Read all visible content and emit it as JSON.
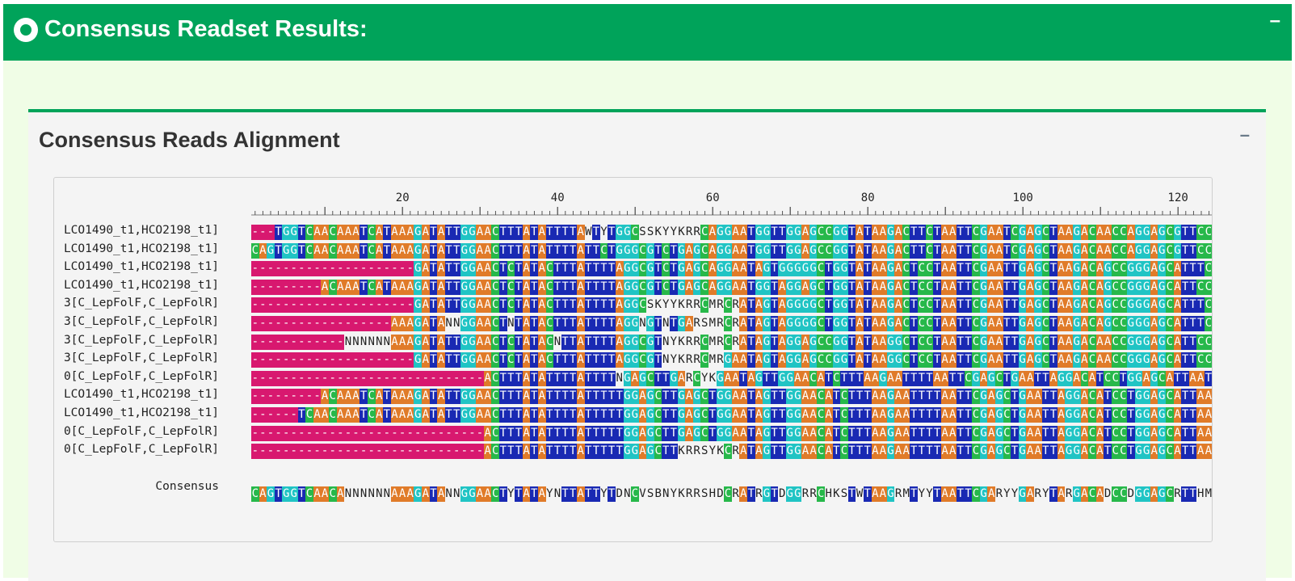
{
  "outer_panel": {
    "title": "Consensus Readset Results:",
    "collapse_label": "–"
  },
  "inner_panel": {
    "title": "Consensus Reads Alignment",
    "collapse_label": "–"
  },
  "ruler": {
    "ticks": [
      20,
      40,
      60,
      80,
      100,
      120
    ]
  },
  "colors": {
    "A": "#e07b29",
    "C": "#27b84a",
    "G": "#20c4c4",
    "T": "#1929b3",
    "gap": "#d8186f",
    "header": "#00a35a"
  },
  "alignment": {
    "rows": [
      {
        "label": "LCO1490_t1,HCO2198_t1]",
        "seq": "---TGGTCAACAAATCATAAAGATATTGGAACTTTATATTTTAWTYTGGCSSKYYKRRCAGGAATGGTTGGAGCCGGTATAAGACTTCTAATTCGAATCGAGCTAAGACAACCAGGAGCGTTCC"
      },
      {
        "label": "LCO1490_t1,HCO2198_t1]",
        "seq": "CAGTGGTCAACAAATCATAAAGATATTGGAACTTTATATTTTATTCTGGGCGTCTGAGCAGGAATGGTTGGAGCCGGTATAAGACTTCTAATTCGAATCGAGCTAAGACAACCAGGAGCGTTCC"
      },
      {
        "label": "LCO1490_t1,HCO2198_t1]",
        "seq": "---------------------GATATTGGAACTCTATACTTTATTTTAGGCGTCTGAGCAGGAATAGTGGGGGCTGGTATAAGACTCCTAATTCGAATTGAGCTAAGACAGCCGGGAGCATTTC"
      },
      {
        "label": "LCO1490_t1,HCO2198_t1]",
        "seq": "---------ACAAATCATAAAGATATTGGAACTCTATACTTTATTTTAGGCGTCTGAGCAGGAATGGTAGGAGCTGGTATAAGACTCCTAATTCGAATTGAGCTAAGACAGCCGGGAGCATTCC"
      },
      {
        "label": "3[C_LepFolF,C_LepFolR]",
        "seq": "---------------------GATATTGGAACTCTATACTTTATTTTAGGCSKYYKRRCMRCRATAGTAGGGGCTGGTATAAGACTCCTAATTCGAATTGAGCTAAGACAGCCGGGAGCATTTC"
      },
      {
        "label": "3[C_LepFolF,C_LepFolR]",
        "seq": "------------------AAAGATANNGGAACTNTATACTTTATTTTAGGNGTNTGARSMRCRATAGTAGGGGCTGGTATAAGACTCCTAATTCGAATTGAGCTAAGACAGCCGGGAGCATTTC"
      },
      {
        "label": "3[C_LepFolF,C_LepFolR]",
        "seq": "------------NNNNNNAAAGATATTGGAACTCTATACNTTATTTTAGGCGTNYKRRCMRCRATAGTAGGAGCCGGTATAAGGCTCCTAATTCGAATTGAGCTAAGACAACCGGGAGCATTCC"
      },
      {
        "label": "3[C_LepFolF,C_LepFolR]",
        "seq": "---------------------GATATTGGAACTCTATACTTTATTTTAGGCGTNYKRRCMRGAATAGTAGGAGCCGGTATAAGGCTCCTAATTCGAATTGAGCTAAGACAACCGGGAGCATTCC"
      },
      {
        "label": "0[C_LepFolF,C_LepFolR]",
        "seq": "------------------------------ACTTTATATTTTATTTTNGAGCTTGARCYKGAATAGTTGGAACATCTTTAAGAATTTTAATTCGAGCTGAATTAGGACATCCTGGAGCATTAAT"
      },
      {
        "label": "LCO1490_t1,HCO2198_t1]",
        "seq": "---------ACAAATCATAAAGATATTGGAACTTTATATTTTATTTTTGGAGCTTGAGCTGGAATAGTTGGAACATCTTTAAGAATTTTAATTCGAGCTGAATTAGGACATCCTGGAGCATTAAT"
      },
      {
        "label": "LCO1490_t1,HCO2198_t1]",
        "seq": "------TCAACAAATCATAAAGATATTGGAACTTTATATTTTATTTTTGGAGCTTGAGCTGGAATAGTTGGAACATCTTTAAGAATTTTAATTCGAGCTGAATTAGGACATCCTGGAGCATTAAT"
      },
      {
        "label": "0[C_LepFolF,C_LepFolR]",
        "seq": "------------------------------ACTTTATATTTTATTTTTGGAGCTTGAGCTGGAATAGTTGGAACATCTTTAAGAATTTTAATTCGAGCTGAATTAGGACATCCTGGAGCATTAAT"
      },
      {
        "label": "0[C_LepFolF,C_LepFolR]",
        "seq": "------------------------------ACTTTATATTTTATTTTTGGAGCTTKRRSYKCRATAGTTGGAACATCTTTAAGAATTTTAATTCGAGCTGAATTAGGACATCCTGGAGCATTAAT"
      }
    ],
    "consensus": {
      "label": "Consensus",
      "seq": "CAGTGGTCAACANNNNNNAAAGATANNGGAACTYTATAYNTTATTYTDNCVSBNYKRRSHDCRATRGTDGGRRCHKSTWTAAGRMTYYTAATTCGARYYGARYTARGACADCCDGGAGCRTTHMY"
    }
  }
}
